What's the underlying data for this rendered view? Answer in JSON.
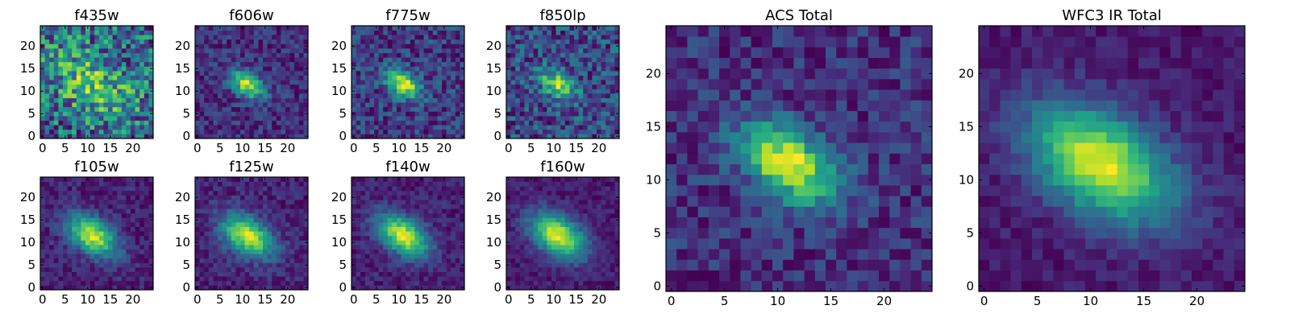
{
  "colormap": "viridis",
  "chart_data": [
    {
      "type": "heatmap",
      "title": "f435w",
      "seed": 11,
      "sigma": 6.0,
      "noise": 0.65,
      "amp": 0.35,
      "base": 0.55,
      "size": 25,
      "xticks": [
        0,
        5,
        10,
        15,
        20
      ],
      "yticks": [
        0,
        5,
        10,
        15,
        20
      ],
      "xlim": [
        -0.5,
        24.5
      ],
      "ylim": [
        -0.5,
        24.5
      ]
    },
    {
      "type": "heatmap",
      "title": "f606w",
      "seed": 23,
      "sigma": 2.4,
      "noise": 0.35,
      "amp": 0.9,
      "base": 0.15,
      "size": 25,
      "xticks": [
        0,
        5,
        10,
        15,
        20
      ],
      "yticks": [
        0,
        5,
        10,
        15,
        20
      ],
      "xlim": [
        -0.5,
        24.5
      ],
      "ylim": [
        -0.5,
        24.5
      ]
    },
    {
      "type": "heatmap",
      "title": "f775w",
      "seed": 37,
      "sigma": 2.4,
      "noise": 0.4,
      "amp": 0.85,
      "base": 0.18,
      "size": 25,
      "xticks": [
        0,
        5,
        10,
        15,
        20
      ],
      "yticks": [
        0,
        5,
        10,
        15,
        20
      ],
      "xlim": [
        -0.5,
        24.5
      ],
      "ylim": [
        -0.5,
        24.5
      ]
    },
    {
      "type": "heatmap",
      "title": "f850lp",
      "seed": 41,
      "sigma": 2.6,
      "noise": 0.55,
      "amp": 0.7,
      "base": 0.3,
      "size": 25,
      "xticks": [
        0,
        5,
        10,
        15,
        20
      ],
      "yticks": [
        0,
        5,
        10,
        15,
        20
      ],
      "xlim": [
        -0.5,
        24.5
      ],
      "ylim": [
        -0.5,
        24.5
      ]
    },
    {
      "type": "heatmap",
      "title": "f105w",
      "seed": 53,
      "sigma": 3.4,
      "noise": 0.25,
      "amp": 1.0,
      "base": 0.1,
      "size": 25,
      "xticks": [
        0,
        5,
        10,
        15,
        20
      ],
      "yticks": [
        0,
        5,
        10,
        15,
        20
      ],
      "xlim": [
        -0.5,
        24.5
      ],
      "ylim": [
        -0.5,
        24.5
      ]
    },
    {
      "type": "heatmap",
      "title": "f125w",
      "seed": 67,
      "sigma": 3.6,
      "noise": 0.25,
      "amp": 1.0,
      "base": 0.1,
      "size": 25,
      "xticks": [
        0,
        5,
        10,
        15,
        20
      ],
      "yticks": [
        0,
        5,
        10,
        15,
        20
      ],
      "xlim": [
        -0.5,
        24.5
      ],
      "ylim": [
        -0.5,
        24.5
      ]
    },
    {
      "type": "heatmap",
      "title": "f140w",
      "seed": 71,
      "sigma": 3.5,
      "noise": 0.22,
      "amp": 1.0,
      "base": 0.08,
      "size": 25,
      "xticks": [
        0,
        5,
        10,
        15,
        20
      ],
      "yticks": [
        0,
        5,
        10,
        15,
        20
      ],
      "xlim": [
        -0.5,
        24.5
      ],
      "ylim": [
        -0.5,
        24.5
      ]
    },
    {
      "type": "heatmap",
      "title": "f160w",
      "seed": 83,
      "sigma": 3.8,
      "noise": 0.18,
      "amp": 1.0,
      "base": 0.05,
      "size": 25,
      "xticks": [
        0,
        5,
        10,
        15,
        20
      ],
      "yticks": [
        0,
        5,
        10,
        15,
        20
      ],
      "xlim": [
        -0.5,
        24.5
      ],
      "ylim": [
        -0.5,
        24.5
      ]
    },
    {
      "type": "heatmap",
      "title": "ACS Total",
      "seed": 97,
      "sigma": 2.8,
      "noise": 0.3,
      "amp": 0.9,
      "base": 0.22,
      "size": 25,
      "xticks": [
        0,
        5,
        10,
        15,
        20
      ],
      "yticks": [
        0,
        5,
        10,
        15,
        20
      ],
      "xlim": [
        -0.5,
        24.5
      ],
      "ylim": [
        -0.5,
        24.5
      ]
    },
    {
      "type": "heatmap",
      "title": "WFC3 IR Total",
      "seed": 109,
      "sigma": 4.2,
      "noise": 0.16,
      "amp": 1.0,
      "base": 0.04,
      "size": 25,
      "xticks": [
        0,
        5,
        10,
        15,
        20
      ],
      "yticks": [
        0,
        5,
        10,
        15,
        20
      ],
      "xlim": [
        -0.5,
        24.5
      ],
      "ylim": [
        -0.5,
        24.5
      ]
    }
  ]
}
